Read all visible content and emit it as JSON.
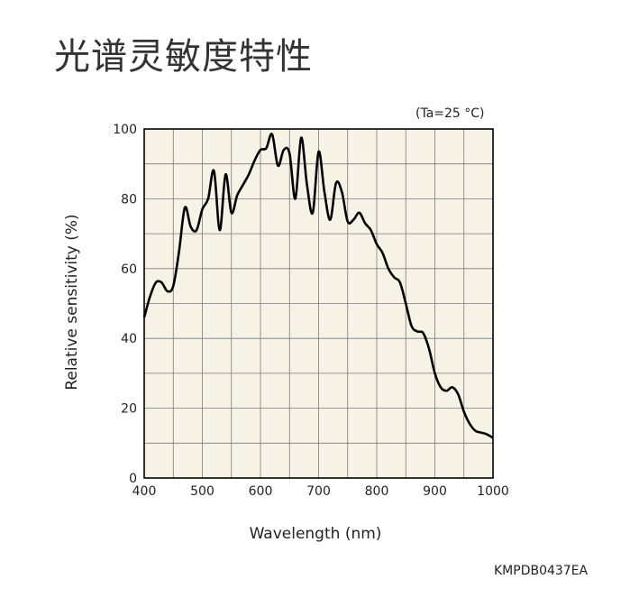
{
  "page": {
    "title": "光谱灵敏度特性",
    "condition": "(Ta=25 °C)",
    "figure_code": "KMPDB0437EA"
  },
  "chart_data": {
    "type": "line",
    "xlabel": "Wavelength (nm)",
    "ylabel": "Relative sensitivity (%)",
    "xlim": [
      400,
      1000
    ],
    "ylim": [
      0,
      100
    ],
    "xticks": [
      400,
      500,
      600,
      700,
      800,
      900,
      1000
    ],
    "yticks": [
      0,
      20,
      40,
      60,
      80,
      100
    ],
    "x_minor_step": 50,
    "y_minor_step": 10,
    "grid": true,
    "colors": {
      "plot_bg": "#f6f3e6",
      "grid": "#7a7a7a",
      "line": "#000000"
    },
    "series": [
      {
        "x": [
          400,
          410,
          420,
          430,
          440,
          450,
          460,
          470,
          480,
          490,
          500,
          510,
          520,
          530,
          540,
          550,
          560,
          570,
          580,
          590,
          600,
          610,
          620,
          630,
          640,
          650,
          660,
          670,
          680,
          690,
          700,
          710,
          720,
          730,
          740,
          750,
          760,
          770,
          780,
          790,
          800,
          810,
          820,
          830,
          840,
          850,
          860,
          870,
          880,
          890,
          900,
          910,
          920,
          930,
          940,
          950,
          960,
          970,
          980,
          990,
          1000
        ],
        "y": [
          46,
          52,
          56,
          56,
          53.5,
          55,
          65,
          77.5,
          72,
          71,
          77,
          80,
          88,
          71,
          87,
          76,
          81,
          84,
          87,
          91,
          94,
          94.5,
          98.5,
          89.5,
          94,
          93,
          80,
          97.5,
          84,
          76,
          93.5,
          82,
          74,
          84.5,
          82,
          73.5,
          74,
          76,
          73,
          71,
          67,
          64.5,
          60,
          57.5,
          56,
          50,
          43.5,
          42,
          41.5,
          37,
          30,
          26,
          25,
          26,
          24,
          19,
          15.5,
          13.5,
          13,
          12.5,
          11.5
        ]
      }
    ]
  }
}
